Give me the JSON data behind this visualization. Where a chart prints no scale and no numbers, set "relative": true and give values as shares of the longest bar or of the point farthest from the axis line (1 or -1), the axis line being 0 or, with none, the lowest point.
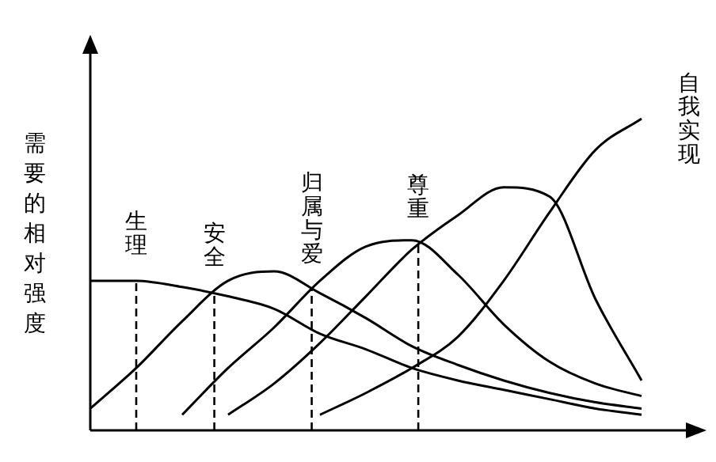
{
  "chart_data": {
    "type": "line",
    "relative": true,
    "ylabel": "需要的相对强度",
    "categories": [
      null,
      null,
      null,
      null,
      null,
      null,
      null,
      null,
      null,
      null,
      null,
      null,
      null
    ],
    "series": [
      {
        "name": "生理",
        "color": "#000000",
        "values": [
          0.48,
          0.48,
          0.46,
          0.43,
          0.39,
          0.31,
          0.26,
          0.2,
          0.16,
          0.13,
          0.1,
          0.07,
          0.05
        ]
      },
      {
        "name": "安全",
        "color": "#000000",
        "values": [
          0.07,
          0.2,
          0.35,
          0.48,
          0.51,
          0.44,
          0.36,
          0.27,
          0.21,
          0.16,
          0.12,
          0.09,
          0.07
        ]
      },
      {
        "name": "归属与爱",
        "color": "#000000",
        "values": [
          null,
          null,
          0.05,
          0.2,
          0.33,
          0.48,
          0.59,
          0.61,
          0.5,
          0.34,
          0.22,
          0.15,
          0.11
        ]
      },
      {
        "name": "尊重",
        "color": "#000000",
        "values": [
          null,
          null,
          null,
          0.05,
          0.15,
          0.28,
          0.43,
          0.58,
          0.69,
          0.78,
          0.75,
          0.42,
          0.16
        ]
      },
      {
        "name": "自我实现",
        "color": "#000000",
        "values": [
          null,
          null,
          null,
          null,
          null,
          0.05,
          0.12,
          0.2,
          0.3,
          0.48,
          0.7,
          0.9,
          1.0
        ]
      }
    ],
    "marker": "none",
    "line_style": "solid",
    "grid": false,
    "legend": false
  }
}
